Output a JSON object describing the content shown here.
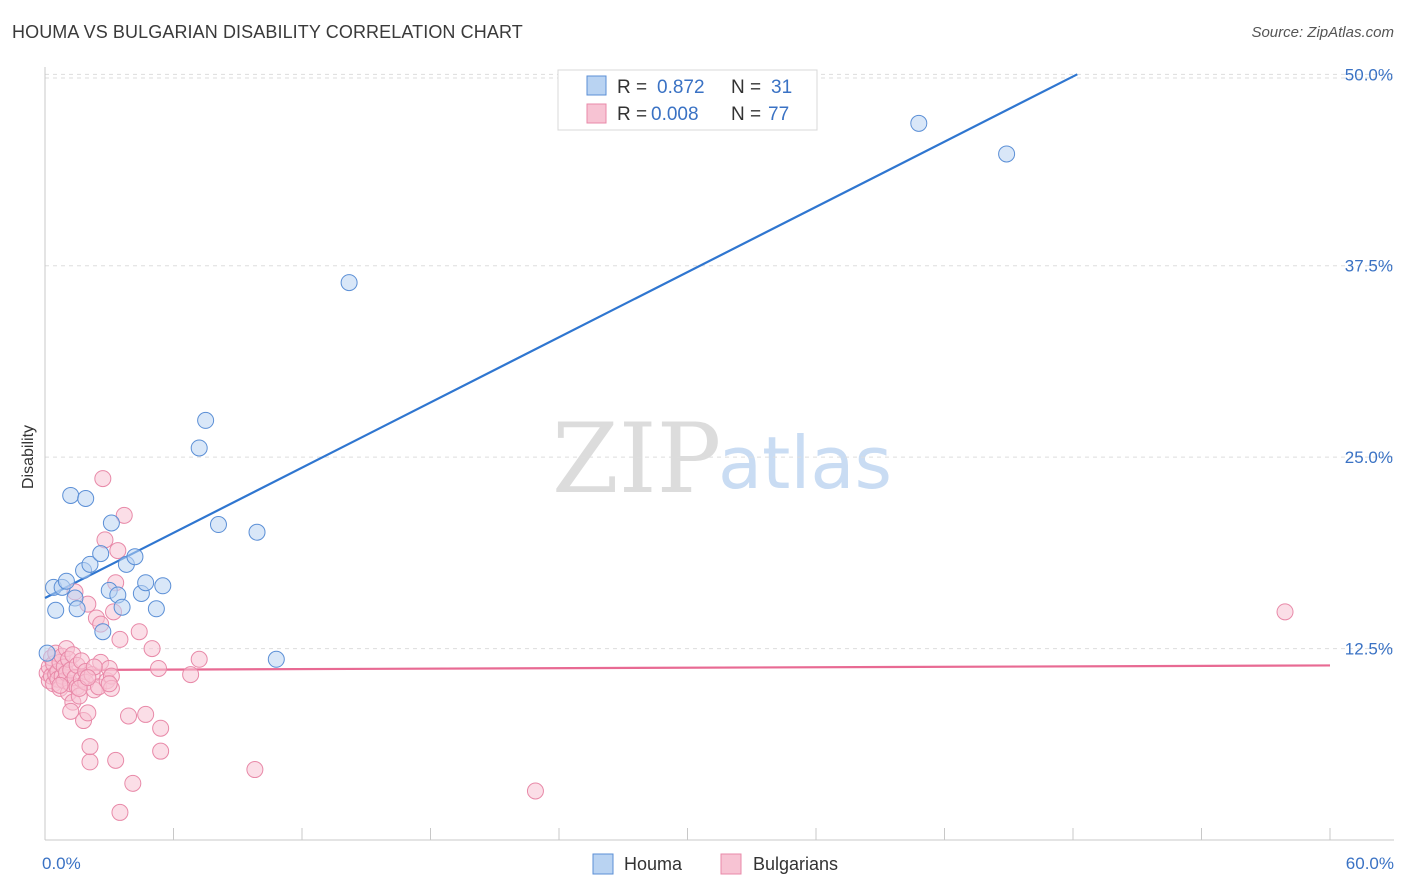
{
  "header": {
    "title": "HOUMA VS BULGARIAN DISABILITY CORRELATION CHART",
    "source": "Source: ZipAtlas.com"
  },
  "watermark": {
    "zip": "ZIP",
    "atlas": "atlas"
  },
  "legend": {
    "rows": [
      {
        "r_label": "R =",
        "r_value": "0.872",
        "n_label": "N =",
        "n_value": "31"
      },
      {
        "r_label": "R =",
        "r_value": "0.008",
        "n_label": "N =",
        "n_value": "77"
      }
    ]
  },
  "bottom_legend": {
    "houma": "Houma",
    "bulgarians": "Bulgarians"
  },
  "colors": {
    "houma_fill": "#b9d3f2",
    "houma_stroke": "#5b8fd6",
    "houma_line": "#2f76d0",
    "bulg_fill": "#f7c3d3",
    "bulg_stroke": "#e889a8",
    "bulg_line": "#e86a93",
    "tick_text": "#3a72c4",
    "grid": "#dddddd"
  },
  "chart_data": {
    "type": "scatter",
    "title": "HOUMA VS BULGARIAN DISABILITY CORRELATION CHART",
    "xlabel": "",
    "ylabel": "Disability",
    "xlim": [
      0,
      60
    ],
    "ylim": [
      0,
      51
    ],
    "x_tick_labels": [
      "0.0%",
      "60.0%"
    ],
    "y_ticks": [
      12.5,
      25.0,
      37.5,
      50.0
    ],
    "y_tick_labels": [
      "12.5%",
      "25.0%",
      "37.5%",
      "50.0%"
    ],
    "series": [
      {
        "name": "Houma",
        "r": 0.872,
        "n": 31,
        "trend": {
          "x1": 0,
          "y1": 15.8,
          "x2": 48.2,
          "y2": 50.0
        },
        "points": [
          [
            0.1,
            12.2
          ],
          [
            0.4,
            16.5
          ],
          [
            0.5,
            15.0
          ],
          [
            0.8,
            16.5
          ],
          [
            1.0,
            16.9
          ],
          [
            1.2,
            22.5
          ],
          [
            1.4,
            15.8
          ],
          [
            1.5,
            15.1
          ],
          [
            1.8,
            17.6
          ],
          [
            1.9,
            22.3
          ],
          [
            2.1,
            18.0
          ],
          [
            2.6,
            18.7
          ],
          [
            3.1,
            20.7
          ],
          [
            3.0,
            16.3
          ],
          [
            3.4,
            16.0
          ],
          [
            3.6,
            15.2
          ],
          [
            3.8,
            18.0
          ],
          [
            4.2,
            18.5
          ],
          [
            4.5,
            16.1
          ],
          [
            4.7,
            16.8
          ],
          [
            5.2,
            15.1
          ],
          [
            5.5,
            16.6
          ],
          [
            2.7,
            13.6
          ],
          [
            7.2,
            25.6
          ],
          [
            7.5,
            27.4
          ],
          [
            8.1,
            20.6
          ],
          [
            9.9,
            20.1
          ],
          [
            10.8,
            11.8
          ],
          [
            14.2,
            36.4
          ],
          [
            40.8,
            46.8
          ],
          [
            44.9,
            44.8
          ]
        ]
      },
      {
        "name": "Bulgarians",
        "r": 0.008,
        "n": 77,
        "trend": {
          "x1": 0,
          "y1": 11.1,
          "x2": 60,
          "y2": 11.4
        },
        "points": [
          [
            0.1,
            10.9
          ],
          [
            0.2,
            11.3
          ],
          [
            0.2,
            10.4
          ],
          [
            0.3,
            11.9
          ],
          [
            0.3,
            10.7
          ],
          [
            0.4,
            11.5
          ],
          [
            0.4,
            10.2
          ],
          [
            0.5,
            10.8
          ],
          [
            0.5,
            12.2
          ],
          [
            0.6,
            11.0
          ],
          [
            0.6,
            10.5
          ],
          [
            0.7,
            11.6
          ],
          [
            0.7,
            9.9
          ],
          [
            0.8,
            10.7
          ],
          [
            0.8,
            12.0
          ],
          [
            0.9,
            11.3
          ],
          [
            0.9,
            10.4
          ],
          [
            1.0,
            10.9
          ],
          [
            1.0,
            12.5
          ],
          [
            1.1,
            9.6
          ],
          [
            1.1,
            11.8
          ],
          [
            1.2,
            10.2
          ],
          [
            1.2,
            11.1
          ],
          [
            1.3,
            9.0
          ],
          [
            1.3,
            12.1
          ],
          [
            1.4,
            10.6
          ],
          [
            1.4,
            16.2
          ],
          [
            1.5,
            10.0
          ],
          [
            1.5,
            11.4
          ],
          [
            1.6,
            9.4
          ],
          [
            1.7,
            11.7
          ],
          [
            1.7,
            10.5
          ],
          [
            1.8,
            7.8
          ],
          [
            1.9,
            11.0
          ],
          [
            1.9,
            10.3
          ],
          [
            2.0,
            15.4
          ],
          [
            2.0,
            8.3
          ],
          [
            2.1,
            5.1
          ],
          [
            2.1,
            6.1
          ],
          [
            2.2,
            10.8
          ],
          [
            2.3,
            9.8
          ],
          [
            2.4,
            14.5
          ],
          [
            2.5,
            10.0
          ],
          [
            2.6,
            14.1
          ],
          [
            2.6,
            11.6
          ],
          [
            2.7,
            23.6
          ],
          [
            2.8,
            19.6
          ],
          [
            2.9,
            10.4
          ],
          [
            3.0,
            11.2
          ],
          [
            3.1,
            10.7
          ],
          [
            3.1,
            9.9
          ],
          [
            3.2,
            14.9
          ],
          [
            3.3,
            16.8
          ],
          [
            3.3,
            5.2
          ],
          [
            3.4,
            18.9
          ],
          [
            3.5,
            13.1
          ],
          [
            3.5,
            1.8
          ],
          [
            3.7,
            21.2
          ],
          [
            3.9,
            8.1
          ],
          [
            4.1,
            3.7
          ],
          [
            4.4,
            13.6
          ],
          [
            4.7,
            8.2
          ],
          [
            5.0,
            12.5
          ],
          [
            5.3,
            11.2
          ],
          [
            5.4,
            7.3
          ],
          [
            5.4,
            5.8
          ],
          [
            6.8,
            10.8
          ],
          [
            7.2,
            11.8
          ],
          [
            9.8,
            4.6
          ],
          [
            22.9,
            3.2
          ],
          [
            57.9,
            14.9
          ],
          [
            1.6,
            9.9
          ],
          [
            0.7,
            10.1
          ],
          [
            2.3,
            11.3
          ],
          [
            1.2,
            8.4
          ],
          [
            3.0,
            10.2
          ],
          [
            2.0,
            10.6
          ]
        ]
      }
    ]
  }
}
